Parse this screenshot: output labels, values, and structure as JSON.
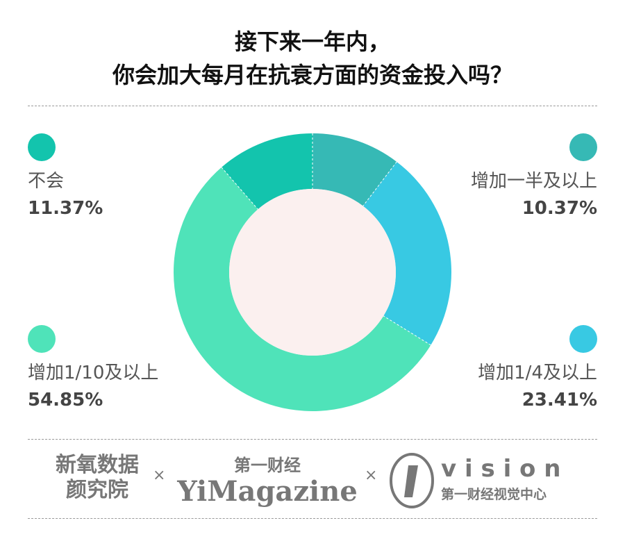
{
  "title_line1": "接下来一年内，",
  "title_line2": "你会加大每月在抗衰方面的资金投入吗？",
  "chart_data": {
    "type": "pie",
    "donut": true,
    "categories": [
      "增加一半及以上",
      "增加1/4及以上",
      "增加1/10及以上",
      "不会"
    ],
    "values": [
      10.37,
      23.41,
      54.85,
      11.37
    ],
    "labels": [
      "10.37%",
      "23.41%",
      "54.85%",
      "11.37%"
    ],
    "colors": [
      "#36b9b5",
      "#38c9e3",
      "#4fe3b9",
      "#13c4ad"
    ],
    "center_color": "#fbf0ef"
  },
  "footer": {
    "logo1_line1": "新氧数据",
    "logo1_line2": "颜究院",
    "sep": "×",
    "logo2_top": "第一财经",
    "logo2_main": "YiMagazine",
    "logo3_main": "v i s i o n",
    "logo3_sub": "第一财经视觉中心"
  }
}
